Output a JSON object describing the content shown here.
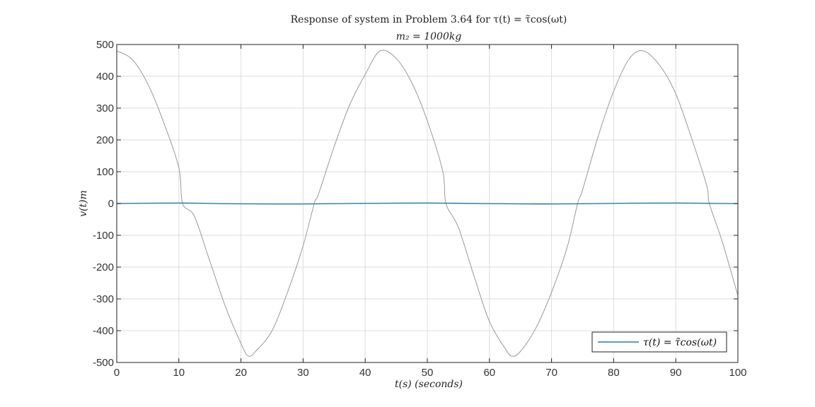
{
  "chart_data": {
    "type": "line",
    "title": "Response of system in Problem 3.64 for τ(t) = τ̃cos(ωt)",
    "subtitle": "m₂ = 1000kg",
    "xlabel": "t(s)  (seconds)",
    "ylabel": "v(t)m",
    "xlim": [
      0,
      100
    ],
    "ylim": [
      -500,
      500
    ],
    "x_ticks": [
      "0",
      "10",
      "20",
      "30",
      "40",
      "50",
      "60",
      "70",
      "80",
      "90",
      "100"
    ],
    "y_ticks": [
      "500",
      "400",
      "300",
      "200",
      "100",
      "0",
      "-100",
      "-200",
      "-300",
      "-400",
      "-500"
    ],
    "grid": true,
    "legend": {
      "entries": [
        "τ(t) = τ̃cos(ωt)"
      ],
      "placement": "bottom-right"
    },
    "series": [
      {
        "color": "#999999",
        "x": [
          0,
          2.5,
          5,
          7.5,
          10,
          10.6,
          12.5,
          15,
          17.5,
          20,
          21.2,
          22.5,
          25,
          27.5,
          30,
          31.8,
          32.5,
          35,
          37.5,
          40,
          42.4,
          45,
          47.5,
          50,
          52.5,
          53.0,
          55,
          57.5,
          60,
          62.5,
          63.6,
          65,
          67.5,
          70,
          72.5,
          74.2,
          75,
          77.5,
          80,
          82.5,
          84.8,
          87.5,
          90,
          92.5,
          95,
          95.4,
          97.5,
          100
        ],
        "y": [
          480,
          453,
          376,
          258,
          113,
          0,
          -40,
          -182,
          -324,
          -440,
          -480,
          -462,
          -400,
          -279,
          -133,
          0,
          30,
          179,
          310,
          406,
          480,
          456,
          380,
          260,
          100,
          0,
          -75,
          -227,
          -371,
          -455,
          -480,
          -465,
          -391,
          -279,
          -139,
          0,
          43,
          211,
          353,
          455,
          480,
          432,
          345,
          208,
          55,
          0,
          -121,
          -290
        ]
      },
      {
        "name": "τ(t) = τ̃cos(ωt)",
        "color": "#2a7aad",
        "x": [
          0,
          10,
          20,
          30,
          40,
          50,
          60,
          70,
          80,
          90,
          100
        ],
        "y": [
          0,
          1.5,
          -1,
          -1.5,
          0.5,
          1.5,
          -0.5,
          -1.5,
          0.5,
          1.5,
          -0.5
        ]
      }
    ]
  }
}
